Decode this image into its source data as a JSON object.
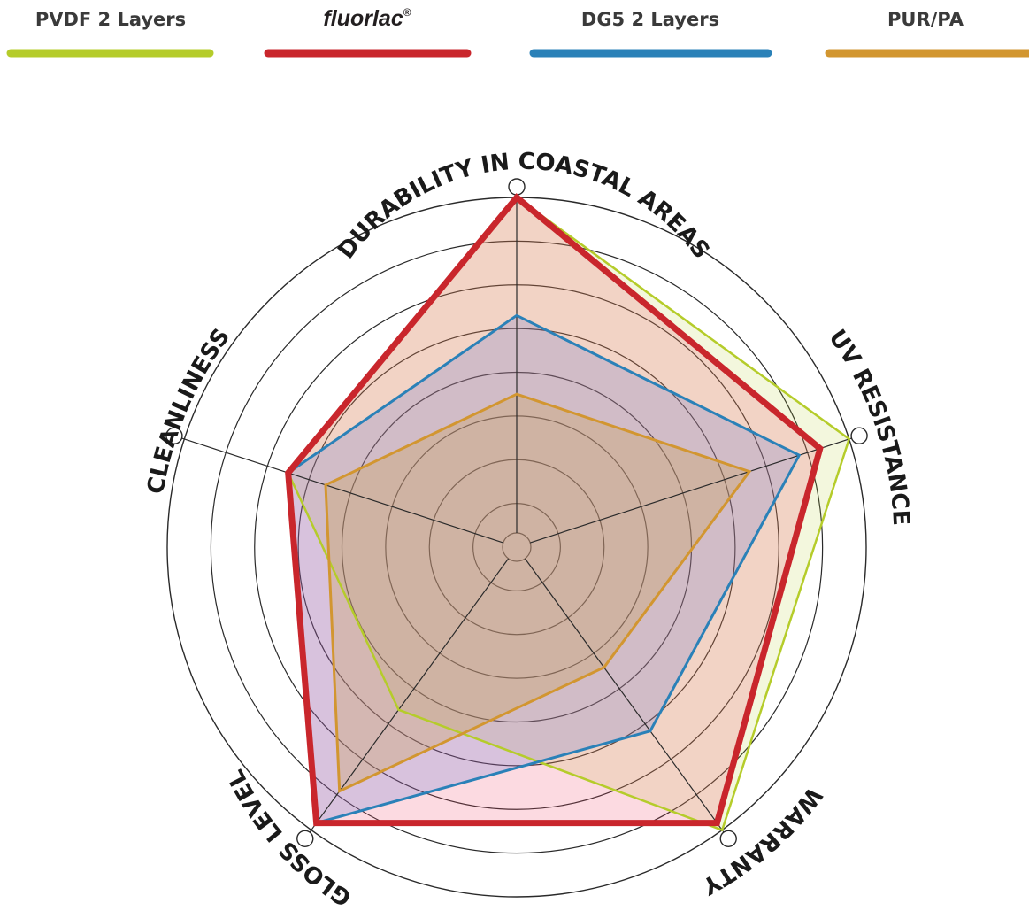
{
  "chart_data": {
    "type": "radar",
    "axes": [
      "DURABILITY IN COASTAL AREAS",
      "UV RESISTANCE",
      "WARRANTY",
      "GLOSS LEVEL",
      "CLEANLINESS"
    ],
    "levels": 8,
    "range": [
      0,
      8
    ],
    "legend_position": "top",
    "series": [
      {
        "name": "PVDF 2 Layers",
        "color": "#b5cc2a",
        "fill": "#b5cc2a",
        "values": [
          8.0,
          8.0,
          8.0,
          4.6,
          5.5
        ]
      },
      {
        "name": "fluorlac",
        "mark": "®",
        "color": "#c9262c",
        "fill": "#f0466a",
        "values": [
          8.0,
          7.3,
          7.8,
          7.8,
          5.5
        ]
      },
      {
        "name": "DG5 2 Layers",
        "color": "#2a81b8",
        "fill": "#5a6fd0",
        "values": [
          5.3,
          6.8,
          5.2,
          7.8,
          5.5
        ]
      },
      {
        "name": "PUR/PA",
        "color": "#d29630",
        "fill": "#c9a050",
        "values": [
          3.5,
          5.6,
          3.4,
          6.9,
          4.6
        ]
      }
    ]
  }
}
